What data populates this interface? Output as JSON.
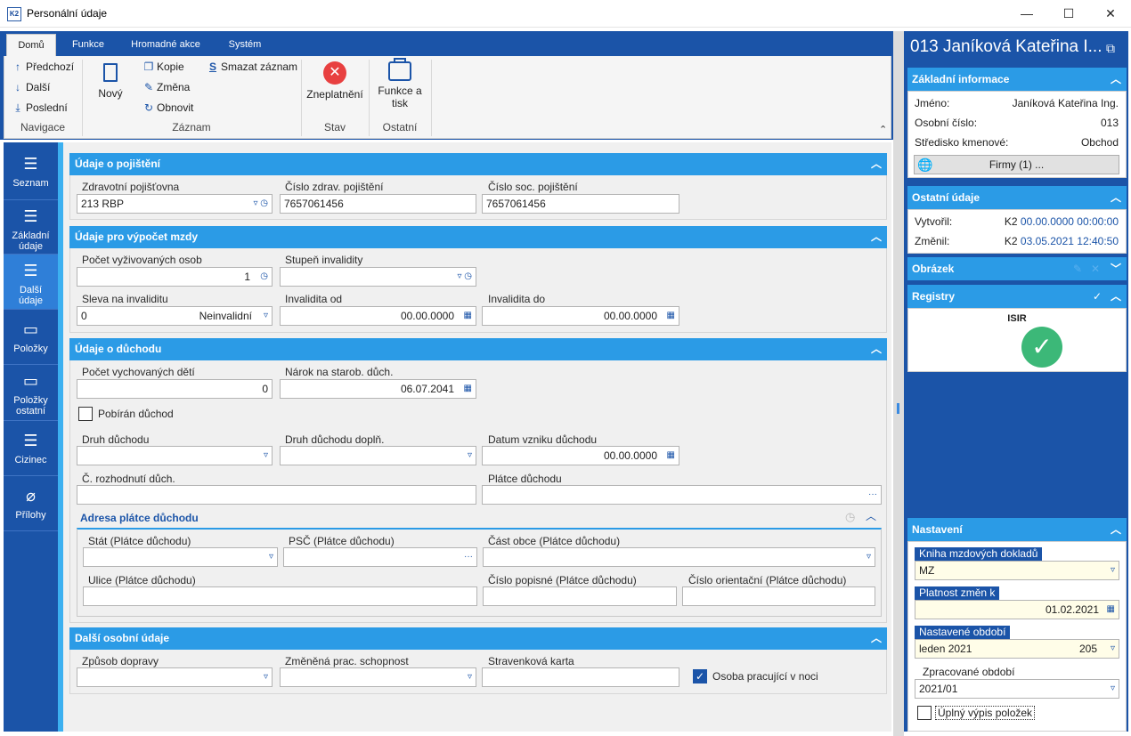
{
  "window": {
    "title": "Personální údaje",
    "appicon": "K2",
    "minimize": "—",
    "maximize": "☐",
    "close": "✕"
  },
  "ribbon": {
    "tabs": [
      "Domů",
      "Funkce",
      "Hromadné akce",
      "Systém"
    ],
    "nav": {
      "prev": "Předchozí",
      "next": "Další",
      "last": "Poslední",
      "group": "Navigace"
    },
    "record": {
      "new": "Nový",
      "copy": "Kopie",
      "edit": "Změna",
      "refresh": "Obnovit",
      "delete": "Smazat záznam",
      "group": "Záznam"
    },
    "state": {
      "invalidate": "Zneplatnění",
      "group": "Stav"
    },
    "other": {
      "funcprint_1": "Funkce a",
      "funcprint_2": "tisk",
      "group": "Ostatní"
    },
    "collapse": "⌃"
  },
  "leftnav": [
    {
      "label1": "Seznam",
      "label2": "",
      "icon": "☰"
    },
    {
      "label1": "Základní",
      "label2": "údaje",
      "icon": "☰"
    },
    {
      "label1": "Další",
      "label2": "údaje",
      "icon": "☰"
    },
    {
      "label1": "Položky",
      "label2": "",
      "icon": "▭"
    },
    {
      "label1": "Položky",
      "label2": "ostatní",
      "icon": "▭"
    },
    {
      "label1": "Cizinec",
      "label2": "",
      "icon": "☰"
    },
    {
      "label1": "Přílohy",
      "label2": "",
      "icon": "⌀"
    }
  ],
  "insurance": {
    "title": "Údaje o pojištění",
    "health_ins_label": "Zdravotní pojišťovna",
    "health_ins_value": "213 RBP",
    "health_no_label": "Číslo zdrav. pojištění",
    "health_no_value": "7657061456",
    "social_no_label": "Číslo soc. pojištění",
    "social_no_value": "7657061456"
  },
  "wage": {
    "title": "Údaje pro výpočet mzdy",
    "dependents_label": "Počet vyživovaných osob",
    "dependents_value": "1",
    "disability_label": "Stupeň invalidity",
    "disability_value": "",
    "discount_label": "Sleva na invaliditu",
    "discount_value": "0",
    "discount_text": "Neinvalidní",
    "inv_from_label": "Invalidita od",
    "inv_from_value": "00.00.0000",
    "inv_to_label": "Invalidita do",
    "inv_to_value": "00.00.0000"
  },
  "pension": {
    "title": "Údaje o důchodu",
    "children_label": "Počet vychovaných dětí",
    "children_value": "0",
    "claim_label": "Nárok na starob. důch.",
    "claim_value": "06.07.2041",
    "receiving_label": "Pobírán důchod",
    "type_label": "Druh důchodu",
    "type_extra_label": "Druh důchodu doplň.",
    "origin_label": "Datum vzniku důchodu",
    "origin_value": "00.00.0000",
    "decision_label": "Č. rozhodnutí důch.",
    "payer_label": "Plátce důchodu",
    "address": {
      "title": "Adresa plátce důchodu",
      "state_label": "Stát (Plátce důchodu)",
      "psc_label": "PSČ (Plátce důchodu)",
      "part_label": "Část obce (Plátce důchodu)",
      "street_label": "Ulice (Plátce důchodu)",
      "cp_label": "Číslo popisné (Plátce důchodu)",
      "co_label": "Číslo orientační (Plátce důchodu)"
    }
  },
  "other_personal": {
    "title": "Další osobní údaje",
    "transport_label": "Způsob dopravy",
    "capacity_label": "Změněná prac. schopnost",
    "meal_label": "Stravenková karta",
    "night_label": "Osoba pracující v noci"
  },
  "right": {
    "title": "013 Janíková Kateřina I...",
    "basic": {
      "title": "Základní informace",
      "name_label": "Jméno:",
      "name_value": "Janíková Kateřina Ing.",
      "pers_label": "Osobní číslo:",
      "pers_value": "013",
      "center_label": "Středisko kmenové:",
      "center_value": "Obchod",
      "firms_button": "Firmy (1) ..."
    },
    "other": {
      "title": "Ostatní údaje",
      "created_label": "Vytvořil:",
      "created_user": "K2",
      "created_value": "00.00.0000 00:00:00",
      "changed_label": "Změnil:",
      "changed_user": "K2",
      "changed_value": "03.05.2021 12:40:50"
    },
    "image": {
      "title": "Obrázek"
    },
    "registers": {
      "title": "Registry",
      "isir": "ISIR"
    },
    "settings": {
      "title": "Nastavení",
      "book_label": "Kniha mzdových dokladů",
      "book_value": "MZ",
      "validity_label": "Platnost změn k",
      "validity_value": "01.02.2021",
      "period_label": "Nastavené období",
      "period_value": "leden 2021",
      "period_num": "205",
      "processed_label": "Zpracované období",
      "processed_value": "2021/01",
      "full_label": "Úplný výpis položek"
    }
  },
  "colors": {
    "brand": "#1b54a8",
    "section": "#2b9be6",
    "accent_bar": "#3cb0f0",
    "ok": "#3cb878",
    "error": "#e84040"
  }
}
